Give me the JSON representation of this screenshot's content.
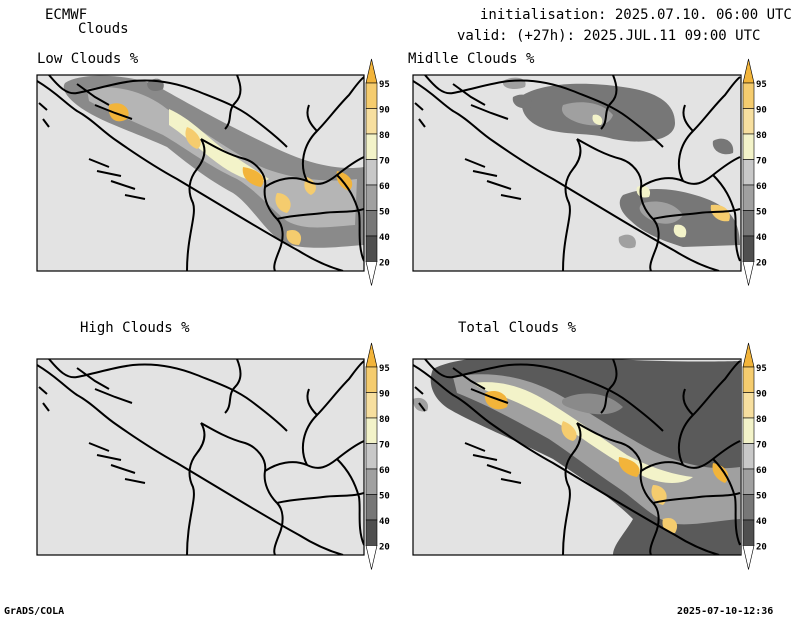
{
  "header": {
    "model": "ECMWF",
    "product": "Clouds",
    "init_line": "initialisation: 2025.07.10. 06:00 UTC",
    "valid_line": "valid: (+27h): 2025.JUL.11 09:00 UTC"
  },
  "panels": [
    {
      "id": "low",
      "title": "Low Clouds %"
    },
    {
      "id": "mid",
      "title": "Midlle Clouds %"
    },
    {
      "id": "high",
      "title": "High Clouds %"
    },
    {
      "id": "total",
      "title": "Total Clouds %"
    }
  ],
  "colorbar": {
    "ticks": [
      "95",
      "90",
      "80",
      "70",
      "60",
      "50",
      "40",
      "20"
    ],
    "colors": [
      "#f2b43a",
      "#f5cc6e",
      "#f7df9f",
      "#f3f3c9",
      "#c8c8c8",
      "#a0a0a0",
      "#777777",
      "#4f4f4f",
      "#ffffff"
    ]
  },
  "footer": {
    "left": "GrADS/COLA",
    "right": "2025-07-10-12:36"
  }
}
